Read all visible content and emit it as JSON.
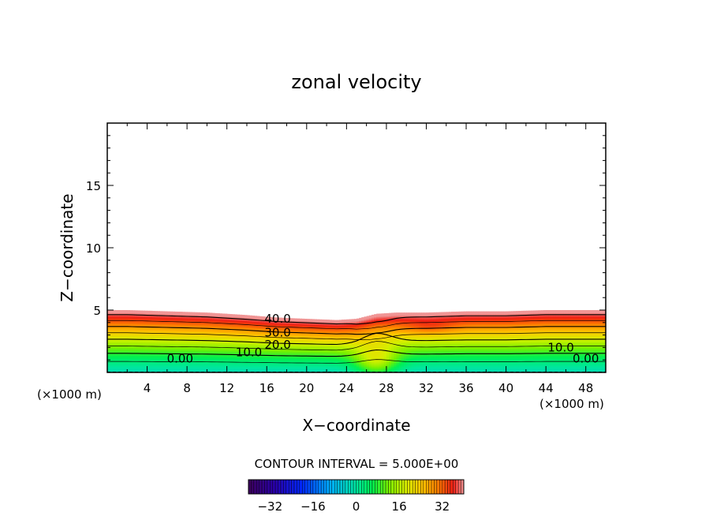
{
  "chart_data": {
    "type": "contour",
    "title": "zonal velocity",
    "xlabel": "X−coordinate",
    "ylabel": "Z−coordinate",
    "x_unit_left": "(×1000 m)",
    "x_unit_right": "(×1000 m)",
    "xlim": [
      0,
      50
    ],
    "ylim": [
      0,
      20
    ],
    "x_ticks": [
      4,
      8,
      12,
      16,
      20,
      24,
      28,
      32,
      36,
      40,
      44,
      48
    ],
    "y_ticks": [
      5,
      10,
      15
    ],
    "contour_interval_text": "CONTOUR INTERVAL = 5.000E+00",
    "contour_labels": [
      {
        "text": "40.0",
        "x": 17.1,
        "z": 4.3
      },
      {
        "text": "30.0",
        "x": 17.1,
        "z": 3.2
      },
      {
        "text": "20.0",
        "x": 17.1,
        "z": 2.2
      },
      {
        "text": "10.0",
        "x": 14.2,
        "z": 1.6
      },
      {
        "text": "0.00",
        "x": 7.3,
        "z": 1.1
      },
      {
        "text": "10.0",
        "x": 45.5,
        "z": 2.0
      },
      {
        "text": "0.00",
        "x": 48.0,
        "z": 1.1
      }
    ],
    "fields": {
      "surface": [
        [
          0,
          5.0
        ],
        [
          2,
          5.0
        ],
        [
          6,
          4.9
        ],
        [
          10,
          4.8
        ],
        [
          14,
          4.6
        ],
        [
          17,
          4.4
        ],
        [
          20,
          4.3
        ],
        [
          23,
          4.2
        ],
        [
          25,
          4.3
        ],
        [
          27,
          4.7
        ],
        [
          29,
          4.8
        ],
        [
          32,
          4.8
        ],
        [
          36,
          4.9
        ],
        [
          40,
          4.9
        ],
        [
          44,
          5.0
        ],
        [
          50,
          5.0
        ]
      ],
      "base": [
        [
          0,
          0
        ],
        [
          50,
          0
        ]
      ]
    },
    "colorbar": {
      "ticks": [
        -32,
        -16,
        0,
        16,
        32
      ],
      "tick_labels": [
        "−32",
        "−16",
        "0",
        "16",
        "32"
      ],
      "range": [
        -40,
        40
      ]
    },
    "colors": {
      "background": "#ffffff",
      "axis": "#000000"
    }
  }
}
